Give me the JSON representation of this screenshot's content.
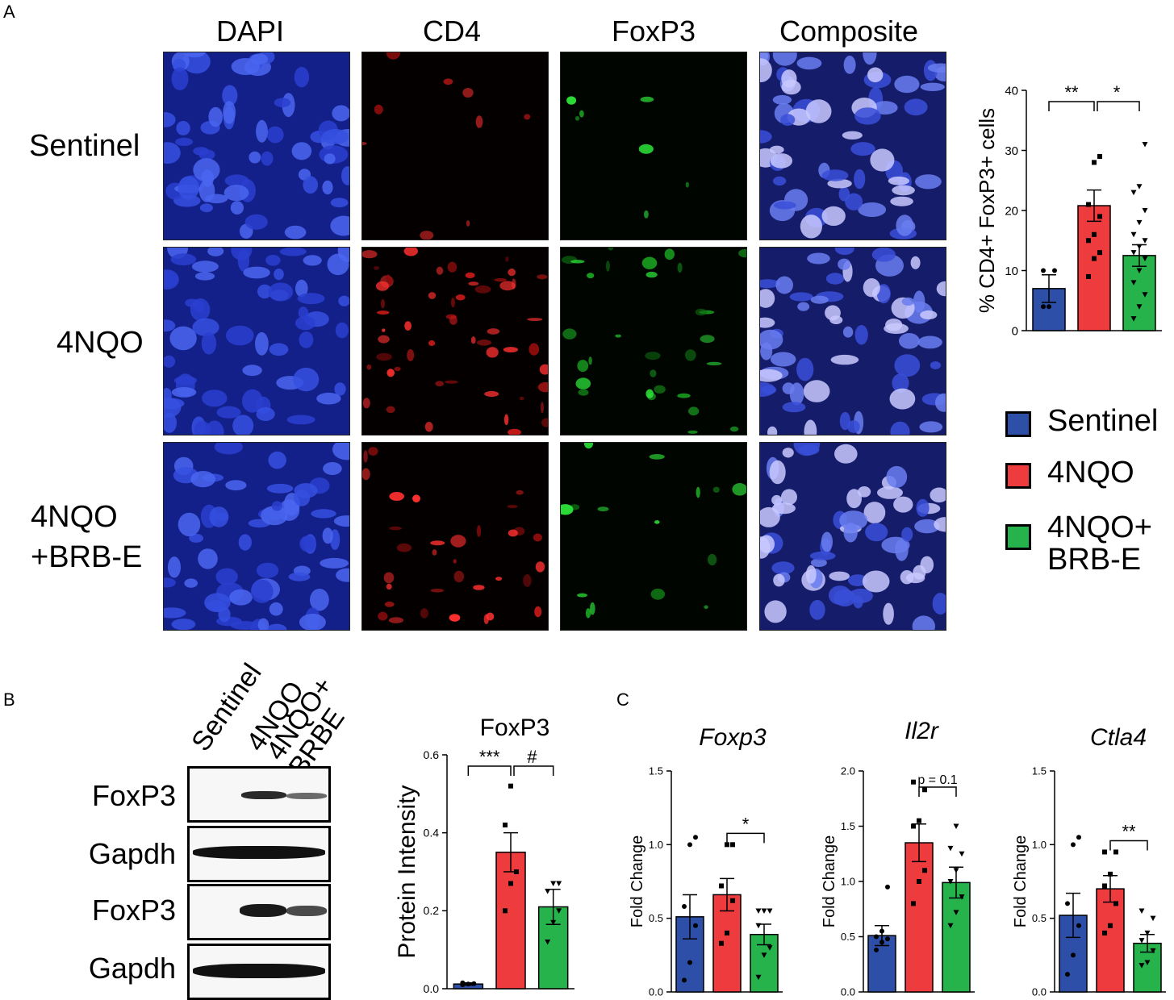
{
  "panels": {
    "a": "A",
    "b": "B",
    "c": "C"
  },
  "panel_a": {
    "columns": [
      "DAPI",
      "CD4",
      "FoxP3",
      "Composite"
    ],
    "rows": [
      {
        "label_lines": [
          "Sentinel"
        ]
      },
      {
        "label_lines": [
          "4NQO"
        ]
      },
      {
        "label_lines": [
          "4NQO",
          "+BRB-E"
        ]
      }
    ],
    "legend": [
      {
        "lines": [
          "Sentinel"
        ],
        "color": "#2d4fa8"
      },
      {
        "lines": [
          "4NQO"
        ],
        "color": "#ee3b3e"
      },
      {
        "lines": [
          "4NQO+",
          "BRB-E"
        ],
        "color": "#27b34b"
      }
    ]
  },
  "panel_b": {
    "lanes": [
      "Sentinel",
      "4NQO",
      "4NQO+\nBRBE"
    ],
    "blots": [
      "FoxP3",
      "Gapdh",
      "FoxP3",
      "Gapdh"
    ]
  },
  "colors": {
    "sentinel": "#2d4fa8",
    "nqo": "#ee3b3e",
    "brbe": "#27b34b"
  },
  "chart_data": [
    {
      "id": "cd4-foxp3",
      "type": "bar",
      "categories": [
        "Sentinel",
        "4NQO",
        "4NQO+BRB-E"
      ],
      "values": [
        7,
        20.8,
        12.5
      ],
      "sem": [
        2.3,
        2.6,
        1.8
      ],
      "points": [
        [
          4,
          4,
          10,
          10
        ],
        [
          9,
          12,
          13,
          15,
          16,
          19,
          21,
          28,
          29
        ],
        [
          2,
          4,
          6,
          8,
          10,
          12,
          13,
          14,
          15,
          16,
          18,
          20,
          23,
          24,
          31
        ]
      ],
      "ylabel": "% CD4+ FoxP3+ cells",
      "ylim": [
        0,
        40
      ],
      "yticks": [
        "0",
        "10",
        "20",
        "30",
        "40"
      ],
      "significance": [
        {
          "label": "**",
          "from": 0,
          "to": 1
        },
        {
          "label": "*",
          "from": 1,
          "to": 2
        }
      ]
    },
    {
      "id": "foxp3-protein",
      "type": "bar",
      "title": "FoxP3",
      "categories": [
        "Sentinel",
        "4NQO",
        "4NQO+BRBE"
      ],
      "values": [
        0.012,
        0.35,
        0.21
      ],
      "sem": [
        0.003,
        0.05,
        0.045
      ],
      "points": [
        [
          0.01,
          0.012,
          0.013,
          0.015
        ],
        [
          0.2,
          0.27,
          0.3,
          0.42,
          0.52
        ],
        [
          0.12,
          0.17,
          0.2,
          0.25,
          0.27,
          0.27
        ]
      ],
      "ylabel": "Protein Intensity",
      "ylim": [
        0,
        0.6
      ],
      "yticks": [
        "0.0",
        "0.2",
        "0.4",
        "0.6"
      ],
      "significance": [
        {
          "label": "***",
          "from": 0,
          "to": 1
        },
        {
          "label": "#",
          "from": 1,
          "to": 2
        }
      ]
    },
    {
      "id": "foxp3-gene",
      "type": "bar",
      "title": "Foxp3",
      "categories": [
        "Sentinel",
        "4NQO",
        "4NQO+BRB-E"
      ],
      "values": [
        0.51,
        0.66,
        0.39
      ],
      "sem": [
        0.15,
        0.11,
        0.07
      ],
      "points": [
        [
          0.08,
          0.2,
          0.45,
          0.58,
          1.0,
          1.05
        ],
        [
          0.33,
          0.4,
          0.62,
          0.72,
          1.0,
          1.0
        ],
        [
          0.1,
          0.25,
          0.3,
          0.45,
          0.55,
          0.55,
          0.55
        ]
      ],
      "ylabel": "Fold Change",
      "ylim": [
        0,
        1.5
      ],
      "yticks": [
        "0.0",
        "0.5",
        "1.0",
        "1.5"
      ],
      "significance": [
        {
          "label": "*",
          "from": 1,
          "to": 2
        }
      ]
    },
    {
      "id": "il2r-gene",
      "type": "bar",
      "title": "Il2r",
      "categories": [
        "Sentinel",
        "4NQO",
        "4NQO+BRB-E"
      ],
      "values": [
        0.51,
        1.35,
        0.99
      ],
      "sem": [
        0.09,
        0.17,
        0.14
      ],
      "points": [
        [
          0.38,
          0.45,
          0.48,
          0.5,
          0.55,
          0.95
        ],
        [
          0.8,
          1.0,
          1.1,
          1.5,
          1.55,
          1.83,
          1.9
        ],
        [
          0.6,
          0.72,
          0.86,
          1.0,
          1.1,
          1.25,
          1.3,
          1.5
        ]
      ],
      "ylabel": "Fold Change",
      "ylim": [
        0,
        2.0
      ],
      "yticks": [
        "0.0",
        "0.5",
        "1.0",
        "1.5",
        "2.0"
      ],
      "significance": [
        {
          "label": "p = 0.1",
          "from": 1,
          "to": 2
        }
      ]
    },
    {
      "id": "ctla4-gene",
      "type": "bar",
      "title": "Ctla4",
      "categories": [
        "Sentinel",
        "4NQO",
        "4NQO+BRB-E"
      ],
      "values": [
        0.52,
        0.7,
        0.33
      ],
      "sem": [
        0.15,
        0.09,
        0.06
      ],
      "points": [
        [
          0.12,
          0.25,
          0.45,
          0.6,
          1.0,
          1.05
        ],
        [
          0.4,
          0.45,
          0.6,
          0.72,
          0.8,
          0.95,
          0.95
        ],
        [
          0.18,
          0.2,
          0.28,
          0.35,
          0.4,
          0.5,
          0.55
        ]
      ],
      "ylabel": "Fold Change",
      "ylim": [
        0,
        1.5
      ],
      "yticks": [
        "0.0",
        "0.5",
        "1.0",
        "1.5"
      ],
      "significance": [
        {
          "label": "**",
          "from": 1,
          "to": 2
        }
      ]
    }
  ]
}
